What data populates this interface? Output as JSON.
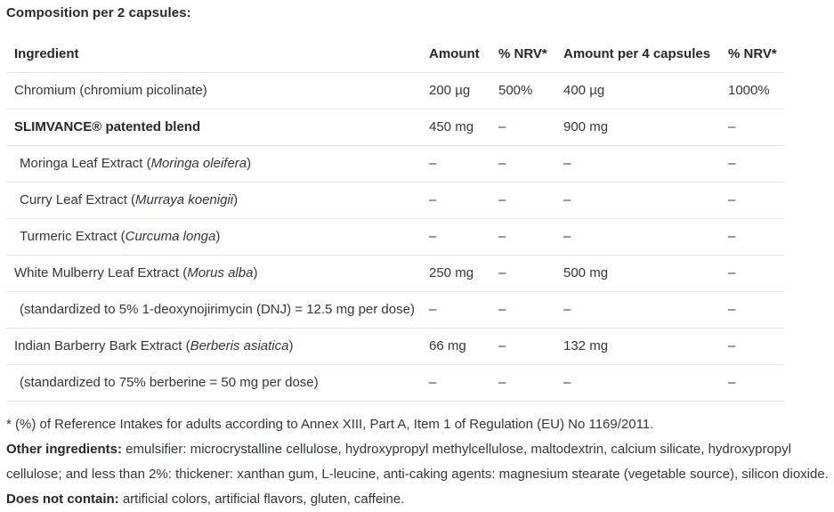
{
  "page": {
    "title": "Composition per 2 capsules:"
  },
  "table": {
    "headers": [
      "Ingredient",
      "Amount",
      "% NRV*",
      "Amount per 4 capsules",
      "% NRV*"
    ],
    "rows": [
      {
        "name_prefix": "Chromium (chromium picolinate)",
        "name_italic": "",
        "name_suffix": "",
        "bold": false,
        "indent": false,
        "amount": "200 µg",
        "nrv": "500%",
        "amount_per_4": "400 µg",
        "nrv_per_4": "1000%"
      },
      {
        "name_prefix": "SLIMVANCE® patented blend",
        "name_italic": "",
        "name_suffix": "",
        "bold": true,
        "indent": false,
        "amount": "450 mg",
        "nrv": "–",
        "amount_per_4": "900 mg",
        "nrv_per_4": "–"
      },
      {
        "name_prefix": "Moringa Leaf Extract (",
        "name_italic": "Moringa oleifera",
        "name_suffix": ")",
        "bold": false,
        "indent": true,
        "amount": "–",
        "nrv": "–",
        "amount_per_4": "–",
        "nrv_per_4": "–"
      },
      {
        "name_prefix": "Curry Leaf Extract (",
        "name_italic": "Murraya koenigii",
        "name_suffix": ")",
        "bold": false,
        "indent": true,
        "amount": "–",
        "nrv": "–",
        "amount_per_4": "–",
        "nrv_per_4": "–"
      },
      {
        "name_prefix": "Turmeric Extract (",
        "name_italic": "Curcuma longa",
        "name_suffix": ")",
        "bold": false,
        "indent": true,
        "amount": "–",
        "nrv": "–",
        "amount_per_4": "–",
        "nrv_per_4": "–"
      },
      {
        "name_prefix": "White Mulberry Leaf Extract (",
        "name_italic": "Morus alba",
        "name_suffix": ")",
        "bold": false,
        "indent": false,
        "amount": "250 mg",
        "nrv": "–",
        "amount_per_4": "500 mg",
        "nrv_per_4": "–"
      },
      {
        "name_prefix": "(standardized to 5% 1-deoxynojirimycin (DNJ) = 12.5 mg per dose)",
        "name_italic": "",
        "name_suffix": "",
        "bold": false,
        "indent": true,
        "amount": "–",
        "nrv": "–",
        "amount_per_4": "–",
        "nrv_per_4": "–"
      },
      {
        "name_prefix": "Indian Barberry Bark Extract (",
        "name_italic": "Berberis asiatica",
        "name_suffix": ")",
        "bold": false,
        "indent": false,
        "amount": "66 mg",
        "nrv": "–",
        "amount_per_4": "132 mg",
        "nrv_per_4": "–"
      },
      {
        "name_prefix": "(standardized to 75% berberine = 50 mg per dose)",
        "name_italic": "",
        "name_suffix": "",
        "bold": false,
        "indent": true,
        "amount": "–",
        "nrv": "–",
        "amount_per_4": "–",
        "nrv_per_4": "–"
      }
    ]
  },
  "footnotes": {
    "nrv_note": "* (%) of Reference Intakes for adults according to Annex XIII, Part A, Item 1 of Regulation (EU) No 1169/2011.",
    "other_ingredients_label": "Other ingredients:",
    "other_ingredients_text": " emulsifier: microcrystalline cellulose, hydroxypropyl methylcellulose, maltodextrin, calcium silicate, hydroxypropyl cellulose; and less than 2%: thickener: xanthan gum, L-leucine, anti-caking agents: magnesium stearate (vegetable source), silicon dioxide.",
    "does_not_contain_label": "Does not contain:",
    "does_not_contain_text": " artificial colors, artificial flavors, gluten, caffeine."
  },
  "colors": {
    "text": "#33363b",
    "heading_text": "#26282c",
    "divider": "#e4e5e7",
    "background": "#ffffff"
  }
}
